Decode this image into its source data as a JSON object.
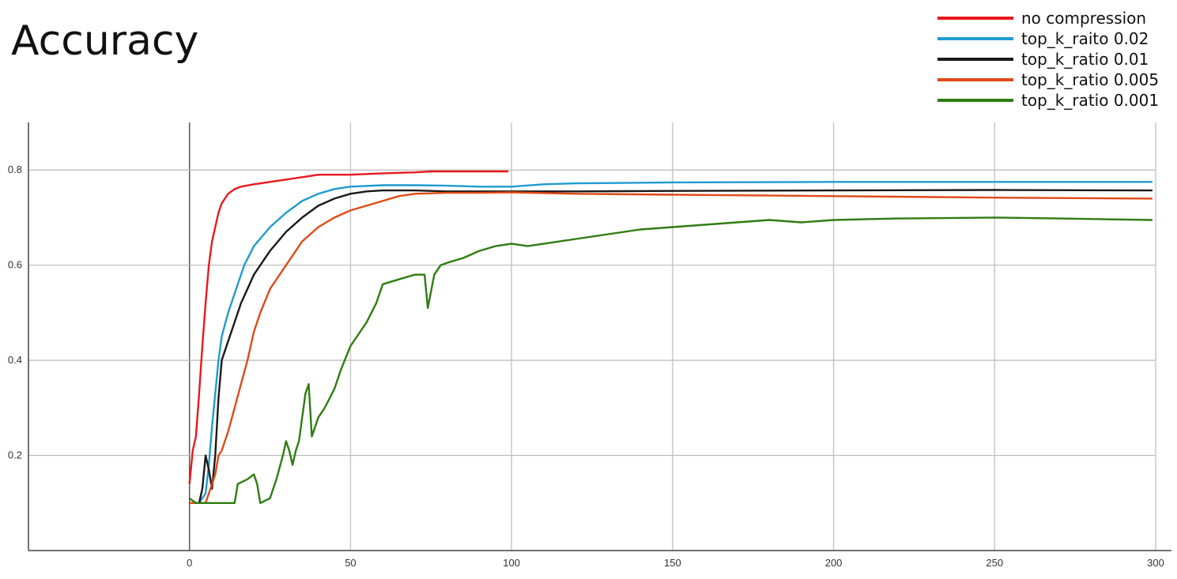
{
  "title": "Accuracy",
  "chart_data": {
    "type": "line",
    "title": "Accuracy",
    "xlabel": "",
    "ylabel": "",
    "xlim": [
      -50,
      300
    ],
    "ylim": [
      0,
      0.9
    ],
    "x_ticks": [
      0,
      50,
      100,
      150,
      200,
      250,
      300
    ],
    "y_ticks": [
      0.2,
      0.4,
      0.6,
      0.8
    ],
    "grid": true,
    "legend_position": "top-right",
    "series": [
      {
        "name": "no compression",
        "color": "#e8191d",
        "points": [
          [
            0,
            0.14
          ],
          [
            1,
            0.21
          ],
          [
            2,
            0.24
          ],
          [
            3,
            0.33
          ],
          [
            4,
            0.43
          ],
          [
            5,
            0.52
          ],
          [
            6,
            0.6
          ],
          [
            7,
            0.65
          ],
          [
            8,
            0.68
          ],
          [
            9,
            0.71
          ],
          [
            10,
            0.73
          ],
          [
            12,
            0.75
          ],
          [
            14,
            0.76
          ],
          [
            16,
            0.765
          ],
          [
            20,
            0.77
          ],
          [
            25,
            0.775
          ],
          [
            30,
            0.78
          ],
          [
            35,
            0.785
          ],
          [
            40,
            0.79
          ],
          [
            50,
            0.79
          ],
          [
            60,
            0.793
          ],
          [
            70,
            0.795
          ],
          [
            75,
            0.797
          ],
          [
            80,
            0.797
          ],
          [
            90,
            0.797
          ],
          [
            99,
            0.797
          ]
        ]
      },
      {
        "name": "top_k_raito 0.02",
        "color": "#1f9bd1",
        "points": [
          [
            0,
            0.1
          ],
          [
            3,
            0.1
          ],
          [
            5,
            0.12
          ],
          [
            6,
            0.18
          ],
          [
            7,
            0.26
          ],
          [
            8,
            0.33
          ],
          [
            9,
            0.4
          ],
          [
            10,
            0.45
          ],
          [
            12,
            0.5
          ],
          [
            13,
            0.52
          ],
          [
            15,
            0.56
          ],
          [
            17,
            0.6
          ],
          [
            20,
            0.64
          ],
          [
            25,
            0.68
          ],
          [
            30,
            0.71
          ],
          [
            35,
            0.735
          ],
          [
            40,
            0.75
          ],
          [
            45,
            0.76
          ],
          [
            50,
            0.765
          ],
          [
            60,
            0.768
          ],
          [
            70,
            0.768
          ],
          [
            80,
            0.767
          ],
          [
            90,
            0.765
          ],
          [
            100,
            0.765
          ],
          [
            110,
            0.77
          ],
          [
            120,
            0.772
          ],
          [
            150,
            0.774
          ],
          [
            200,
            0.775
          ],
          [
            250,
            0.775
          ],
          [
            299,
            0.775
          ]
        ]
      },
      {
        "name": "top_k_ratio 0.01",
        "color": "#1a1a1a",
        "points": [
          [
            0,
            0.1
          ],
          [
            3,
            0.1
          ],
          [
            4,
            0.13
          ],
          [
            5,
            0.2
          ],
          [
            6,
            0.17
          ],
          [
            7,
            0.13
          ],
          [
            8,
            0.2
          ],
          [
            9,
            0.32
          ],
          [
            10,
            0.4
          ],
          [
            12,
            0.44
          ],
          [
            14,
            0.48
          ],
          [
            16,
            0.52
          ],
          [
            18,
            0.55
          ],
          [
            20,
            0.58
          ],
          [
            25,
            0.63
          ],
          [
            30,
            0.67
          ],
          [
            35,
            0.7
          ],
          [
            40,
            0.725
          ],
          [
            45,
            0.74
          ],
          [
            50,
            0.75
          ],
          [
            55,
            0.755
          ],
          [
            60,
            0.757
          ],
          [
            70,
            0.757
          ],
          [
            80,
            0.755
          ],
          [
            90,
            0.755
          ],
          [
            100,
            0.755
          ],
          [
            120,
            0.755
          ],
          [
            150,
            0.756
          ],
          [
            200,
            0.757
          ],
          [
            250,
            0.758
          ],
          [
            299,
            0.757
          ]
        ]
      },
      {
        "name": "top_k_ratio 0.005",
        "color": "#e04a16",
        "points": [
          [
            0,
            0.1
          ],
          [
            5,
            0.1
          ],
          [
            8,
            0.16
          ],
          [
            9,
            0.2
          ],
          [
            10,
            0.21
          ],
          [
            12,
            0.25
          ],
          [
            14,
            0.3
          ],
          [
            16,
            0.35
          ],
          [
            18,
            0.4
          ],
          [
            20,
            0.46
          ],
          [
            22,
            0.5
          ],
          [
            25,
            0.55
          ],
          [
            28,
            0.58
          ],
          [
            30,
            0.6
          ],
          [
            35,
            0.65
          ],
          [
            40,
            0.68
          ],
          [
            45,
            0.7
          ],
          [
            50,
            0.715
          ],
          [
            55,
            0.725
          ],
          [
            60,
            0.735
          ],
          [
            65,
            0.745
          ],
          [
            70,
            0.75
          ],
          [
            80,
            0.752
          ],
          [
            90,
            0.752
          ],
          [
            100,
            0.753
          ],
          [
            120,
            0.75
          ],
          [
            150,
            0.748
          ],
          [
            200,
            0.745
          ],
          [
            250,
            0.742
          ],
          [
            299,
            0.74
          ]
        ]
      },
      {
        "name": "top_k_ratio 0.001",
        "color": "#2e7d12",
        "points": [
          [
            0,
            0.11
          ],
          [
            2,
            0.1
          ],
          [
            5,
            0.1
          ],
          [
            10,
            0.1
          ],
          [
            14,
            0.1
          ],
          [
            15,
            0.14
          ],
          [
            18,
            0.15
          ],
          [
            20,
            0.16
          ],
          [
            21,
            0.14
          ],
          [
            22,
            0.1
          ],
          [
            25,
            0.11
          ],
          [
            27,
            0.15
          ],
          [
            29,
            0.2
          ],
          [
            30,
            0.23
          ],
          [
            31,
            0.21
          ],
          [
            32,
            0.18
          ],
          [
            33,
            0.21
          ],
          [
            34,
            0.23
          ],
          [
            35,
            0.28
          ],
          [
            36,
            0.33
          ],
          [
            37,
            0.35
          ],
          [
            38,
            0.24
          ],
          [
            40,
            0.28
          ],
          [
            42,
            0.3
          ],
          [
            45,
            0.34
          ],
          [
            47,
            0.38
          ],
          [
            50,
            0.43
          ],
          [
            52,
            0.45
          ],
          [
            55,
            0.48
          ],
          [
            58,
            0.52
          ],
          [
            60,
            0.56
          ],
          [
            65,
            0.57
          ],
          [
            70,
            0.58
          ],
          [
            73,
            0.58
          ],
          [
            74,
            0.51
          ],
          [
            76,
            0.58
          ],
          [
            78,
            0.6
          ],
          [
            80,
            0.605
          ],
          [
            85,
            0.615
          ],
          [
            90,
            0.63
          ],
          [
            95,
            0.64
          ],
          [
            100,
            0.645
          ],
          [
            105,
            0.64
          ],
          [
            110,
            0.645
          ],
          [
            120,
            0.655
          ],
          [
            130,
            0.665
          ],
          [
            140,
            0.675
          ],
          [
            150,
            0.68
          ],
          [
            160,
            0.685
          ],
          [
            170,
            0.69
          ],
          [
            180,
            0.695
          ],
          [
            190,
            0.69
          ],
          [
            200,
            0.695
          ],
          [
            220,
            0.698
          ],
          [
            250,
            0.7
          ],
          [
            270,
            0.698
          ],
          [
            299,
            0.695
          ]
        ]
      }
    ]
  }
}
